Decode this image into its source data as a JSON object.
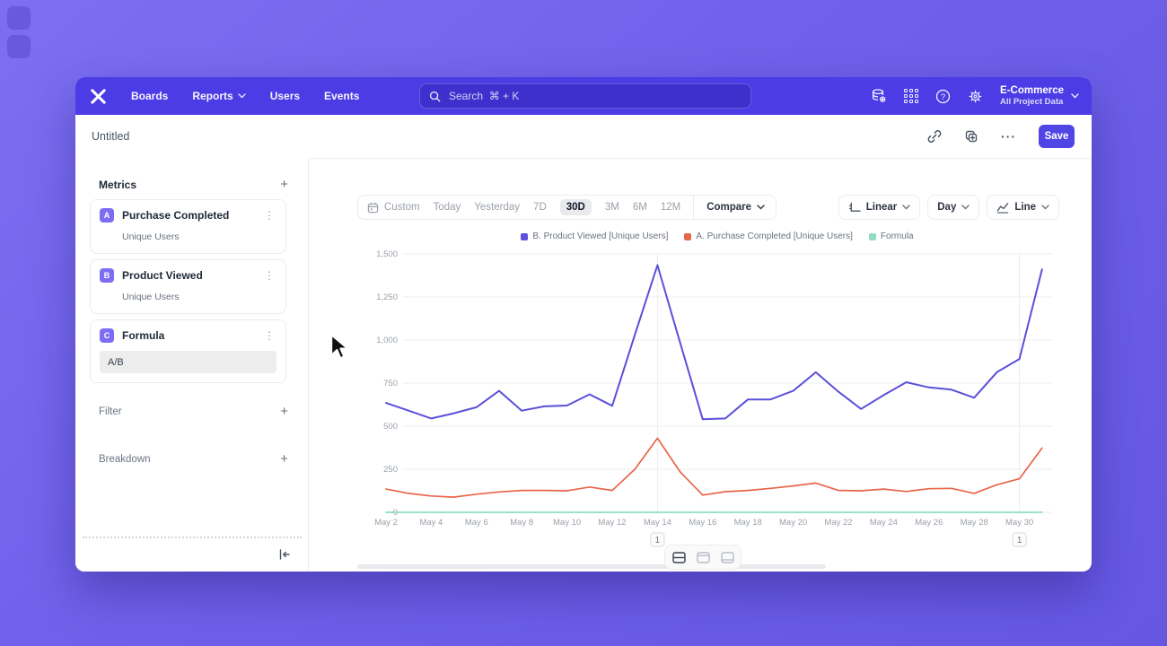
{
  "nav": {
    "tabs": [
      {
        "label": "Boards",
        "has_chevron": false
      },
      {
        "label": "Reports",
        "has_chevron": true
      },
      {
        "label": "Users",
        "has_chevron": false
      },
      {
        "label": "Events",
        "has_chevron": false
      }
    ],
    "search": {
      "placeholder": "Search  ⌘ + K"
    },
    "icons": [
      "data-management-icon",
      "apps-grid-icon",
      "help-icon",
      "settings-gear-icon"
    ],
    "project": {
      "name": "E-Commerce",
      "subtitle": "All Project Data"
    }
  },
  "title_bar": {
    "title": "Untitled",
    "actions": [
      "link-icon",
      "duplicate-icon",
      "more-icon"
    ],
    "save_label": "Save"
  },
  "sidebar": {
    "metrics_header": "Metrics",
    "add_symbol": "+",
    "metrics": [
      {
        "badge": "A",
        "name": "Purchase Completed",
        "subtitle": "Unique Users"
      },
      {
        "badge": "B",
        "name": "Product Viewed",
        "subtitle": "Unique Users"
      },
      {
        "badge": "C",
        "name": "Formula",
        "formula": "A/B"
      }
    ],
    "sections": [
      {
        "label": "Filter",
        "add_symbol": "+"
      },
      {
        "label": "Breakdown",
        "add_symbol": "+"
      }
    ]
  },
  "controls": {
    "date_ranges": [
      "Custom",
      "Today",
      "Yesterday",
      "7D",
      "30D",
      "3M",
      "6M",
      "12M"
    ],
    "active_range": "30D",
    "compare_label": "Compare",
    "dropdowns": [
      {
        "label": "Linear",
        "icon": "axis"
      },
      {
        "label": "Day",
        "icon": "none"
      },
      {
        "label": "Line",
        "icon": "line"
      }
    ]
  },
  "legend": [
    {
      "label": "B. Product Viewed [Unique Users]",
      "color": "#5a50da"
    },
    {
      "label": "A. Purchase Completed [Unique Users]",
      "color": "#e8654a"
    },
    {
      "label": "Formula",
      "color": "#8edcc6"
    }
  ],
  "chart_data": {
    "type": "line",
    "x": [
      "May 2",
      "May 3",
      "May 4",
      "May 5",
      "May 6",
      "May 7",
      "May 8",
      "May 9",
      "May 10",
      "May 11",
      "May 12",
      "May 13",
      "May 14",
      "May 15",
      "May 16",
      "May 17",
      "May 18",
      "May 19",
      "May 20",
      "May 21",
      "May 22",
      "May 23",
      "May 24",
      "May 25",
      "May 26",
      "May 27",
      "May 28",
      "May 29",
      "May 30",
      "May 31"
    ],
    "series": [
      {
        "name": "B. Product Viewed [Unique Users]",
        "color": "#5a50da",
        "values": [
          635,
          590,
          545,
          575,
          610,
          705,
          590,
          615,
          620,
          685,
          618,
          1030,
          1435,
          985,
          540,
          545,
          655,
          655,
          705,
          813,
          700,
          600,
          680,
          755,
          725,
          712,
          665,
          813,
          890,
          1410
        ]
      },
      {
        "name": "A. Purchase Completed [Unique Users]",
        "color": "#e8654a",
        "values": [
          135,
          110,
          95,
          88,
          105,
          118,
          127,
          127,
          125,
          147,
          127,
          250,
          430,
          235,
          100,
          120,
          127,
          139,
          153,
          170,
          127,
          125,
          135,
          121,
          137,
          139,
          110,
          160,
          195,
          373
        ]
      },
      {
        "name": "Formula",
        "color": "#8edcc6",
        "values": [
          0.2,
          0.2,
          0.2,
          0.2,
          0.2,
          0.2,
          0.2,
          0.2,
          0.2,
          0.2,
          0.2,
          0.2,
          0.2,
          0.2,
          0.2,
          0.2,
          0.2,
          0.2,
          0.2,
          0.2,
          0.2,
          0.2,
          0.2,
          0.2,
          0.2,
          0.2,
          0.2,
          0.2,
          0.2,
          0.2
        ]
      }
    ],
    "ylim": [
      0,
      1500
    ],
    "yticks": [
      0,
      250,
      500,
      750,
      1000,
      1250,
      1500
    ],
    "ytick_labels": [
      "0",
      "250",
      "500",
      "750",
      "1,000",
      "1,250",
      "1,500"
    ],
    "xtick_labels": [
      "May 2",
      "May 4",
      "May 6",
      "May 8",
      "May 10",
      "May 12",
      "May 14",
      "May 16",
      "May 18",
      "May 20",
      "May 22",
      "May 24",
      "May 26",
      "May 28",
      "May 30"
    ],
    "annotations": [
      {
        "label": "1",
        "day": "May 14",
        "day_index": 12
      },
      {
        "label": "1",
        "day": "May 30",
        "day_index": 28
      }
    ],
    "grid": true,
    "legend_position": "top-center"
  },
  "footer": {
    "view_toggles": [
      {
        "name": "split-view",
        "active": true
      },
      {
        "name": "top-bar-view",
        "active": false
      },
      {
        "name": "plain-view",
        "active": false
      }
    ]
  }
}
